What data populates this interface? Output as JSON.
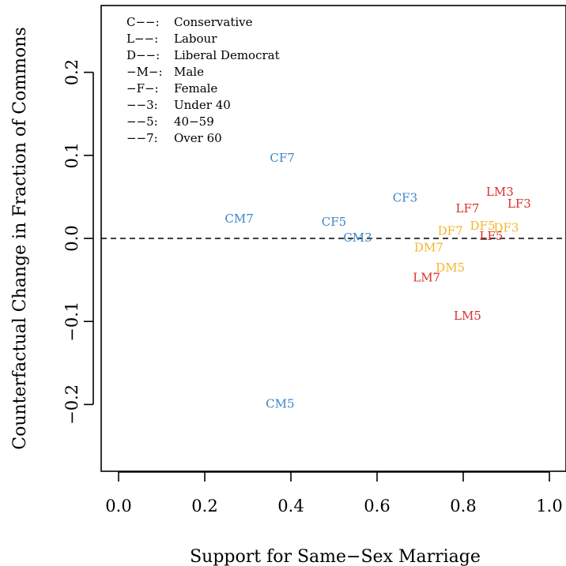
{
  "chart_data": {
    "type": "scatter",
    "xlabel": "Support for Same−Sex Marriage",
    "ylabel": "Counterfactual Change in Fraction of Commons",
    "xlim": [
      -0.04,
      1.03
    ],
    "ylim": [
      -0.28,
      0.28
    ],
    "xticks": [
      0.0,
      0.2,
      0.4,
      0.6,
      0.8,
      1.0
    ],
    "xtick_labels": [
      "0.0",
      "0.2",
      "0.4",
      "0.6",
      "0.8",
      "1.0"
    ],
    "yticks": [
      -0.2,
      -0.1,
      0.0,
      0.1,
      0.2
    ],
    "ytick_labels": [
      "−0.2",
      "−0.1",
      "0.0",
      "0.1",
      "0.2"
    ],
    "reference_line": {
      "y": 0.0,
      "style": "dashed"
    },
    "grid": false,
    "legend_position": "top-left",
    "legend": [
      {
        "code": "C−−:",
        "desc": "Conservative"
      },
      {
        "code": "L−−:",
        "desc": "Labour"
      },
      {
        "code": "D−−:",
        "desc": "Liberal Democrat"
      },
      {
        "code": "−M−:",
        "desc": "Male"
      },
      {
        "code": "−F−:",
        "desc": "Female"
      },
      {
        "code": "−−3:",
        "desc": "Under 40"
      },
      {
        "code": "−−5:",
        "desc": "40−59"
      },
      {
        "code": "−−7:",
        "desc": "Over 60"
      }
    ],
    "colors": {
      "C": "#3a85c8",
      "L": "#d62f2f",
      "D": "#f5b42e"
    },
    "points": [
      {
        "label": "CF7",
        "party": "C",
        "x": 0.38,
        "y": 0.097
      },
      {
        "label": "CM7",
        "party": "C",
        "x": 0.28,
        "y": 0.024
      },
      {
        "label": "CF3",
        "party": "C",
        "x": 0.665,
        "y": 0.049
      },
      {
        "label": "CF5",
        "party": "C",
        "x": 0.5,
        "y": 0.02
      },
      {
        "label": "CM3",
        "party": "C",
        "x": 0.555,
        "y": 0.001
      },
      {
        "label": "CM5",
        "party": "C",
        "x": 0.375,
        "y": -0.199
      },
      {
        "label": "LM3",
        "party": "L",
        "x": 0.885,
        "y": 0.056
      },
      {
        "label": "LF3",
        "party": "L",
        "x": 0.93,
        "y": 0.042
      },
      {
        "label": "LF7",
        "party": "L",
        "x": 0.81,
        "y": 0.036
      },
      {
        "label": "LF5",
        "party": "L",
        "x": 0.865,
        "y": 0.003
      },
      {
        "label": "LM7",
        "party": "L",
        "x": 0.715,
        "y": -0.047
      },
      {
        "label": "LM5",
        "party": "L",
        "x": 0.81,
        "y": -0.093
      },
      {
        "label": "DF7",
        "party": "D",
        "x": 0.77,
        "y": 0.009
      },
      {
        "label": "DF5",
        "party": "D",
        "x": 0.845,
        "y": 0.015
      },
      {
        "label": "DF3",
        "party": "D",
        "x": 0.9,
        "y": 0.013
      },
      {
        "label": "DM7",
        "party": "D",
        "x": 0.72,
        "y": -0.011
      },
      {
        "label": "DM5",
        "party": "D",
        "x": 0.77,
        "y": -0.035
      }
    ]
  }
}
